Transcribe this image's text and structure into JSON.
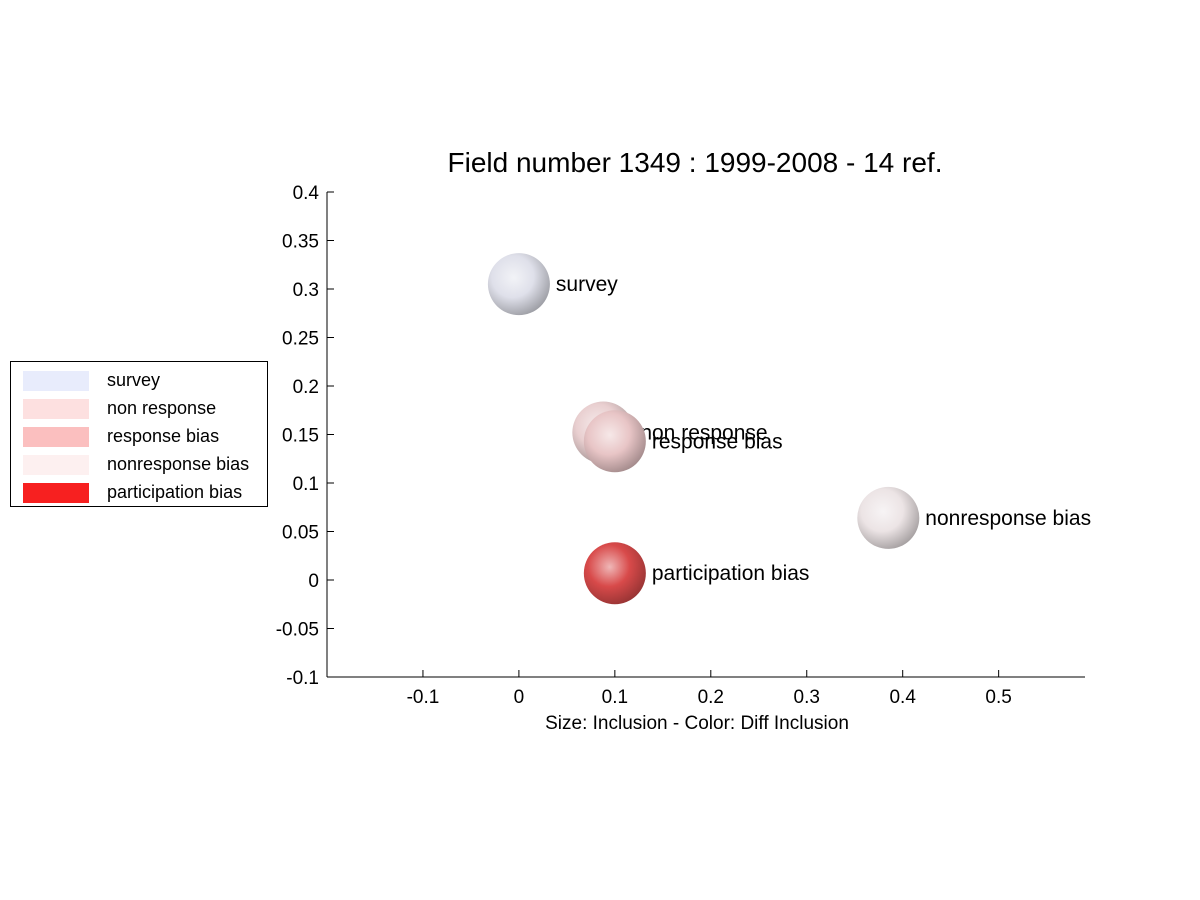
{
  "chart_data": {
    "type": "scatter",
    "title": "Field number 1349 : 1999-2008  - 14 ref.",
    "xlabel": "Size: Inclusion - Color: Diff Inclusion",
    "ylabel": "",
    "xlim": [
      -0.2,
      0.59
    ],
    "ylim": [
      -0.1,
      0.4
    ],
    "xticks": [
      "-0.1",
      "0",
      "0.1",
      "0.2",
      "0.3",
      "0.4",
      "0.5"
    ],
    "yticks": [
      "-0.1",
      "-0.05",
      "0",
      "0.05",
      "0.1",
      "0.15",
      "0.2",
      "0.25",
      "0.3",
      "0.35",
      "0.4"
    ],
    "grid": false,
    "legend_position": "left",
    "points": [
      {
        "label": "survey",
        "x": 0.0,
        "y": 0.305,
        "color": "#dfe0ea"
      },
      {
        "label": "non response",
        "x": 0.088,
        "y": 0.152,
        "color": "#e9cfd0"
      },
      {
        "label": "response bias",
        "x": 0.1,
        "y": 0.143,
        "color": "#e8c5c6"
      },
      {
        "label": "nonresponse bias",
        "x": 0.385,
        "y": 0.064,
        "color": "#ece4e5"
      },
      {
        "label": "participation bias",
        "x": 0.1,
        "y": 0.007,
        "color": "#d84a4a"
      }
    ],
    "legend": [
      {
        "label": "survey",
        "color": "#e8ecfc"
      },
      {
        "label": "non response",
        "color": "#fde0e0"
      },
      {
        "label": "response bias",
        "color": "#fbbfbf"
      },
      {
        "label": "nonresponse bias",
        "color": "#fdf0f0"
      },
      {
        "label": "participation bias",
        "color": "#f72020"
      }
    ]
  }
}
